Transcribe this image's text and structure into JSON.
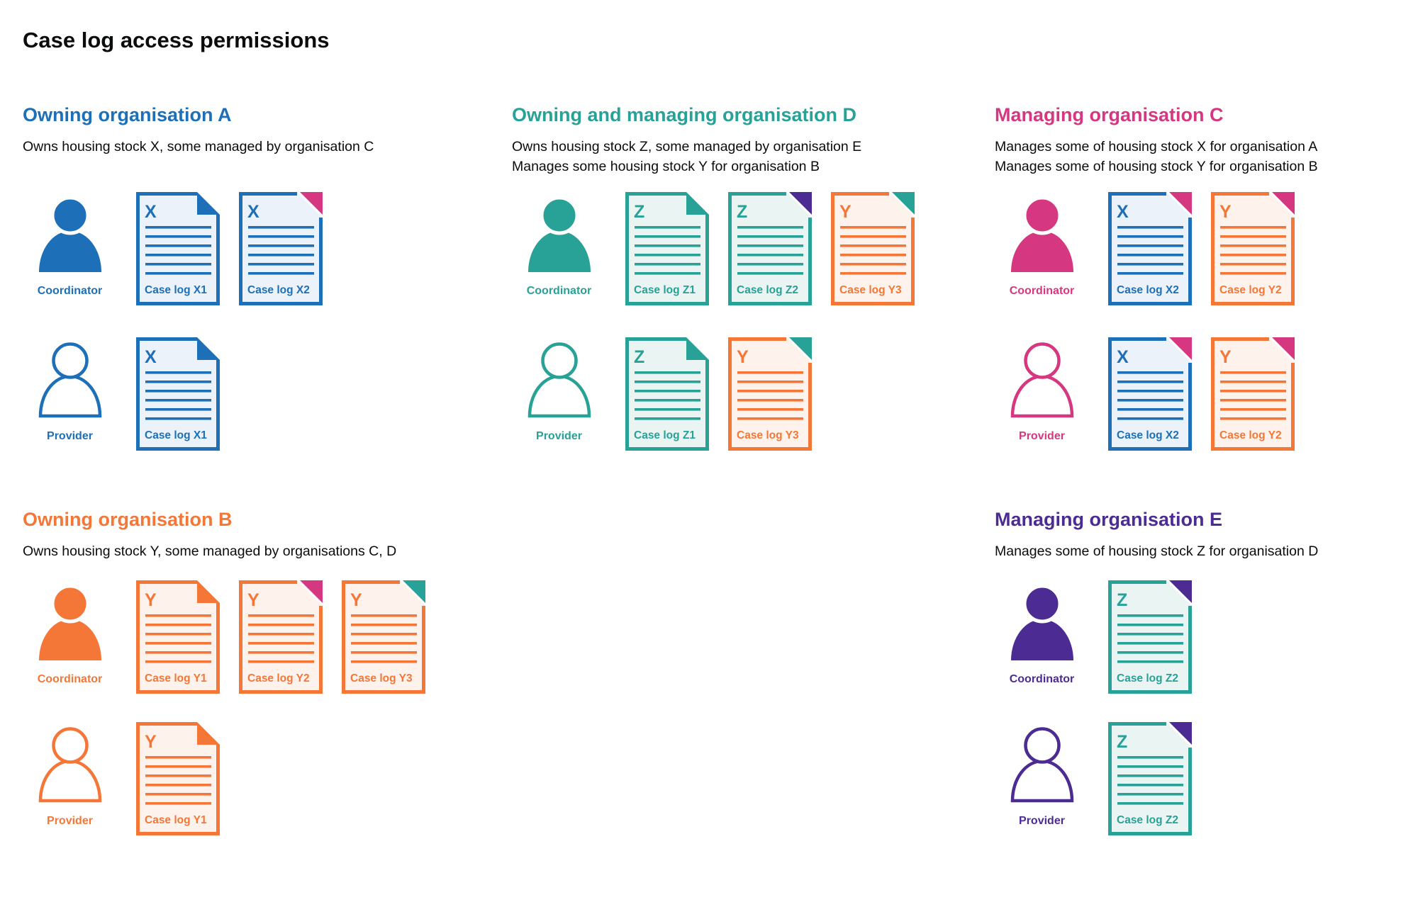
{
  "title": "Case log access permissions",
  "colors": {
    "black": "#0b0c0c",
    "blue": "#1d70b8",
    "blue_tint": "#ebf2f9",
    "teal": "#28a197",
    "teal_tint": "#eaf5f3",
    "orange": "#f47738",
    "orange_tint": "#fdf3ec",
    "pink": "#d53880",
    "pink_tint": "#fbeaf2",
    "purple": "#4c2c92",
    "purple_tint": "#ece9f4"
  },
  "sections": [
    {
      "id": "owning-organisation-a",
      "heading": "Owning organisation A",
      "color": "blue",
      "band": 1,
      "column": 1,
      "description": [
        "Owns housing stock X, some managed by organisation C"
      ],
      "rows": [
        {
          "role": "Coordinator",
          "variant": "filled",
          "docs": [
            {
              "letter": "X",
              "label": "Case log X1",
              "color": "blue",
              "fold": "blue"
            },
            {
              "letter": "X",
              "label": "Case log X2",
              "color": "blue",
              "fold": "pink"
            }
          ]
        },
        {
          "role": "Provider",
          "variant": "outline",
          "docs": [
            {
              "letter": "X",
              "label": "Case log X1",
              "color": "blue",
              "fold": "blue"
            }
          ]
        }
      ]
    },
    {
      "id": "owning-and-managing-organisation-d",
      "heading": "Owning and managing organisation D",
      "color": "teal",
      "band": 1,
      "column": 2,
      "description": [
        "Owns housing stock Z, some managed by organisation E",
        "Manages some housing stock Y for organisation B"
      ],
      "rows": [
        {
          "role": "Coordinator",
          "variant": "filled",
          "docs": [
            {
              "letter": "Z",
              "label": "Case log Z1",
              "color": "teal",
              "fold": "teal"
            },
            {
              "letter": "Z",
              "label": "Case log Z2",
              "color": "teal",
              "fold": "purple"
            },
            {
              "letter": "Y",
              "label": "Case log Y3",
              "color": "orange",
              "fold": "teal"
            }
          ]
        },
        {
          "role": "Provider",
          "variant": "outline",
          "docs": [
            {
              "letter": "Z",
              "label": "Case log Z1",
              "color": "teal",
              "fold": "teal"
            },
            {
              "letter": "Y",
              "label": "Case log Y3",
              "color": "orange",
              "fold": "teal"
            }
          ]
        }
      ]
    },
    {
      "id": "managing-organisation-c",
      "heading": "Managing organisation C",
      "color": "pink",
      "band": 1,
      "column": 3,
      "description": [
        "Manages some of housing stock X for organisation A",
        "Manages some of housing stock Y for organisation B"
      ],
      "rows": [
        {
          "role": "Coordinator",
          "variant": "filled",
          "docs": [
            {
              "letter": "X",
              "label": "Case log X2",
              "color": "blue",
              "fold": "pink"
            },
            {
              "letter": "Y",
              "label": "Case log Y2",
              "color": "orange",
              "fold": "pink"
            }
          ]
        },
        {
          "role": "Provider",
          "variant": "outline",
          "docs": [
            {
              "letter": "X",
              "label": "Case log X2",
              "color": "blue",
              "fold": "pink"
            },
            {
              "letter": "Y",
              "label": "Case log Y2",
              "color": "orange",
              "fold": "pink"
            }
          ]
        }
      ]
    },
    {
      "id": "owning-organisation-b",
      "heading": "Owning organisation B",
      "color": "orange",
      "band": 2,
      "column": 1,
      "description": [
        "Owns housing stock Y, some managed by organisations C, D"
      ],
      "rows": [
        {
          "role": "Coordinator",
          "variant": "filled",
          "docs": [
            {
              "letter": "Y",
              "label": "Case log Y1",
              "color": "orange",
              "fold": "orange"
            },
            {
              "letter": "Y",
              "label": "Case log Y2",
              "color": "orange",
              "fold": "pink"
            },
            {
              "letter": "Y",
              "label": "Case log Y3",
              "color": "orange",
              "fold": "teal"
            }
          ]
        },
        {
          "role": "Provider",
          "variant": "outline",
          "docs": [
            {
              "letter": "Y",
              "label": "Case log Y1",
              "color": "orange",
              "fold": "orange"
            }
          ]
        }
      ]
    },
    {
      "id": "managing-organisation-e",
      "heading": "Managing organisation E",
      "color": "purple",
      "band": 2,
      "column": 3,
      "description": [
        "Manages some of housing stock Z for organisation D"
      ],
      "rows": [
        {
          "role": "Coordinator",
          "variant": "filled",
          "docs": [
            {
              "letter": "Z",
              "label": "Case log Z2",
              "color": "teal",
              "fold": "purple"
            }
          ]
        },
        {
          "role": "Provider",
          "variant": "outline",
          "docs": [
            {
              "letter": "Z",
              "label": "Case log Z2",
              "color": "teal",
              "fold": "purple"
            }
          ]
        }
      ]
    }
  ]
}
